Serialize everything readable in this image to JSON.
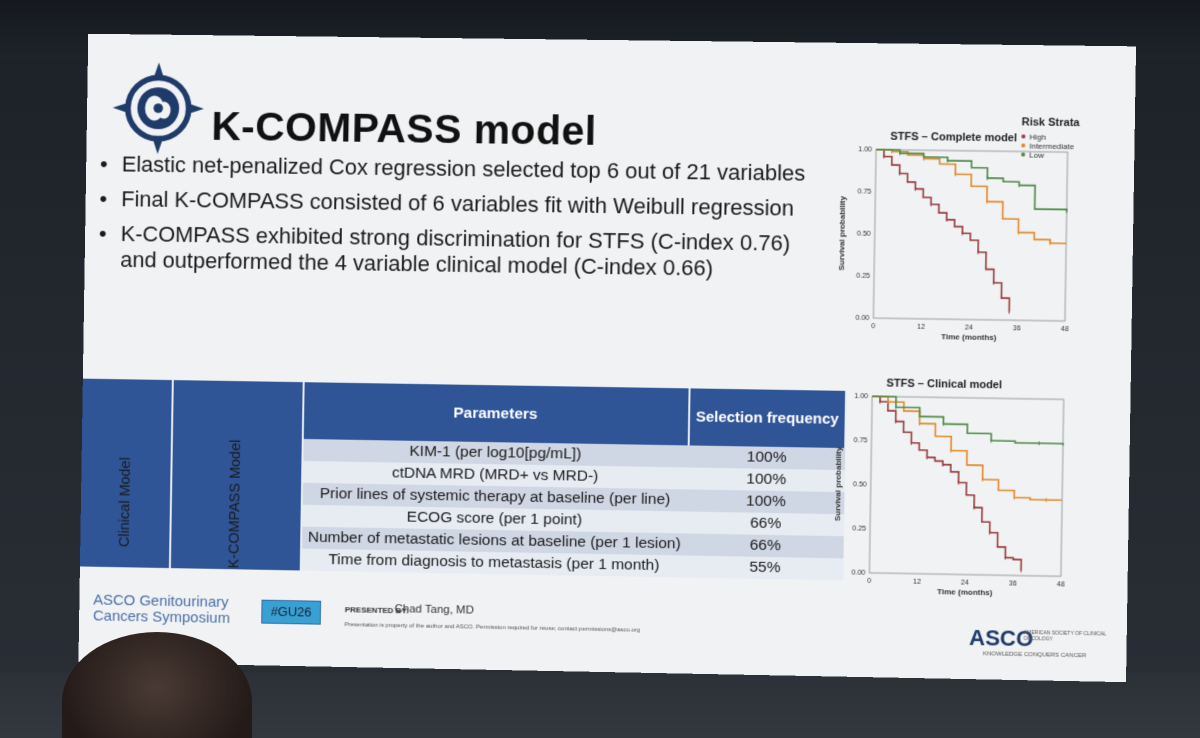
{
  "slide": {
    "title": "K-COMPASS model",
    "bullets": [
      "Elastic net-penalized Cox regression selected top 6 out of 21 variables",
      "Final K-COMPASS consisted of 6 variables fit with Weibull regression",
      "K-COMPASS exhibited strong discrimination for STFS (C-index 0.76) and outperformed the 4 variable clinical model (C-index 0.66)"
    ],
    "bullet_marker": "•"
  },
  "table": {
    "header_parameters": "Parameters",
    "header_selection": "Selection frequency",
    "group_clinical": "Clinical Model",
    "group_kcompass": "K-COMPASS Model",
    "rows": [
      {
        "parameter": "KIM-1 (per log10[pg/mL])",
        "frequency": "100%"
      },
      {
        "parameter": "ctDNA MRD (MRD+ vs MRD-)",
        "frequency": "100%"
      },
      {
        "parameter": "Prior lines of systemic therapy at baseline (per line)",
        "frequency": "100%"
      },
      {
        "parameter": "ECOG score (per 1 point)",
        "frequency": "66%"
      },
      {
        "parameter": "Number of metastatic lesions at baseline (per 1 lesion)",
        "frequency": "66%"
      },
      {
        "parameter": "Time from diagnosis to metastasis (per 1 month)",
        "frequency": "55%"
      }
    ]
  },
  "footer": {
    "asco_line1": "ASCO Genitourinary",
    "asco_line2": "Cancers Symposium",
    "hashtag": "#GU26",
    "presented_by": "PRESENTED BY:",
    "presenter": "Chad Tang, MD",
    "disclaimer": "Presentation is property of the author and ASCO. Permission required for reuse; contact permissions@asco.org",
    "asco_logo": "ASCO",
    "asco_logo_sub": "AMERICAN SOCIETY OF CLINICAL ONCOLOGY",
    "asco_tagline": "KNOWLEDGE CONQUERS CANCER"
  },
  "legend": {
    "title": "Risk Strata",
    "items": [
      {
        "label": "High",
        "color": "#9a3d3d"
      },
      {
        "label": "Intermediate",
        "color": "#e08a2c"
      },
      {
        "label": "Low",
        "color": "#4f8a46"
      }
    ]
  },
  "colors": {
    "header_blue": "#2f5597",
    "high": "#9a3d3d",
    "intermediate": "#e08a2c",
    "low": "#4f8a46"
  },
  "chart_data": [
    {
      "type": "line",
      "title": "STFS – Complete model",
      "xlabel": "Time (months)",
      "ylabel": "Survival probability",
      "xlim": [
        0,
        48
      ],
      "ylim": [
        0,
        1
      ],
      "xticks": [
        "0",
        "12",
        "24",
        "36",
        "48"
      ],
      "yticks": [
        "0.00",
        "0.25",
        "0.50",
        "0.75",
        "1.00"
      ],
      "legend_position": "top-right",
      "series": [
        {
          "name": "High",
          "color": "#9a3d3d",
          "x": [
            0,
            2,
            4,
            6,
            8,
            10,
            12,
            14,
            16,
            18,
            20,
            22,
            24,
            26,
            28,
            30,
            32,
            34
          ],
          "y": [
            1.0,
            0.96,
            0.91,
            0.86,
            0.81,
            0.77,
            0.72,
            0.68,
            0.63,
            0.59,
            0.55,
            0.51,
            0.47,
            0.4,
            0.3,
            0.22,
            0.13,
            0.05
          ]
        },
        {
          "name": "Intermediate",
          "color": "#e08a2c",
          "x": [
            0,
            4,
            8,
            12,
            16,
            20,
            24,
            28,
            32,
            36,
            40,
            44,
            48
          ],
          "y": [
            1.0,
            0.99,
            0.97,
            0.95,
            0.92,
            0.86,
            0.79,
            0.7,
            0.6,
            0.52,
            0.48,
            0.46,
            0.46
          ]
        },
        {
          "name": "Low",
          "color": "#4f8a46",
          "x": [
            0,
            6,
            12,
            18,
            24,
            28,
            32,
            36,
            40,
            48
          ],
          "y": [
            1.0,
            0.98,
            0.96,
            0.94,
            0.9,
            0.84,
            0.82,
            0.8,
            0.66,
            0.65
          ]
        }
      ]
    },
    {
      "type": "line",
      "title": "STFS – Clinical model",
      "xlabel": "Time (months)",
      "ylabel": "Survival probability",
      "xlim": [
        0,
        48
      ],
      "ylim": [
        0,
        1
      ],
      "xticks": [
        "0",
        "12",
        "24",
        "36",
        "48"
      ],
      "yticks": [
        "0.00",
        "0.25",
        "0.50",
        "0.75",
        "1.00"
      ],
      "series": [
        {
          "name": "High",
          "color": "#9a3d3d",
          "x": [
            0,
            2,
            4,
            6,
            8,
            10,
            12,
            14,
            16,
            18,
            20,
            22,
            24,
            26,
            28,
            30,
            32,
            34,
            36,
            38
          ],
          "y": [
            1.0,
            0.97,
            0.92,
            0.86,
            0.8,
            0.74,
            0.7,
            0.66,
            0.64,
            0.62,
            0.58,
            0.52,
            0.45,
            0.38,
            0.3,
            0.24,
            0.16,
            0.1,
            0.09,
            0.03
          ]
        },
        {
          "name": "Intermediate",
          "color": "#e08a2c",
          "x": [
            0,
            4,
            8,
            12,
            16,
            20,
            24,
            28,
            32,
            36,
            40,
            44,
            48
          ],
          "y": [
            1.0,
            0.97,
            0.92,
            0.85,
            0.78,
            0.7,
            0.62,
            0.54,
            0.48,
            0.44,
            0.43,
            0.43,
            0.43
          ]
        },
        {
          "name": "Low",
          "color": "#4f8a46",
          "x": [
            0,
            6,
            12,
            18,
            24,
            30,
            36,
            42,
            48
          ],
          "y": [
            1.0,
            0.94,
            0.89,
            0.85,
            0.8,
            0.76,
            0.75,
            0.75,
            0.74
          ]
        }
      ]
    }
  ]
}
